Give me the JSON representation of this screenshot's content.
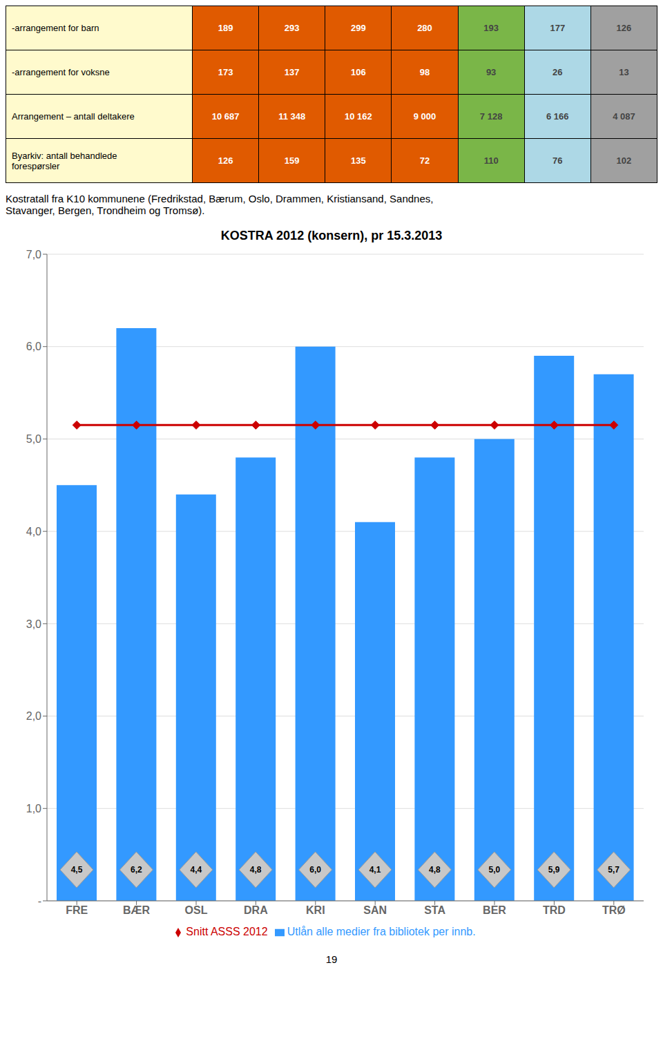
{
  "table": {
    "row_labels": [
      "-arrangement for barn",
      "-arrangement for voksne",
      "Arrangement – antall deltakere",
      "Byarkiv: antall behandlede\nforespørsler"
    ],
    "row_label_color": "#FFFACD",
    "columns": [
      {
        "color": "#E05A00",
        "values": [
          189,
          173,
          10687,
          126
        ],
        "value_labels": [
          "189",
          "173",
          "10 687",
          "126"
        ]
      },
      {
        "color": "#E05A00",
        "values": [
          293,
          137,
          11348,
          159
        ],
        "value_labels": [
          "293",
          "137",
          "11 348",
          "159"
        ]
      },
      {
        "color": "#E05A00",
        "values": [
          299,
          106,
          10162,
          135
        ],
        "value_labels": [
          "299",
          "106",
          "10 162",
          "135"
        ]
      },
      {
        "color": "#E05A00",
        "values": [
          280,
          98,
          9000,
          72
        ],
        "value_labels": [
          "280",
          "98",
          "9 000",
          "72"
        ]
      },
      {
        "color": "#7AB648",
        "values": [
          193,
          93,
          7128,
          110
        ],
        "value_labels": [
          "193",
          "93",
          "7 128",
          "110"
        ]
      },
      {
        "color": "#ADD8E6",
        "values": [
          177,
          26,
          6166,
          76
        ],
        "value_labels": [
          "177",
          "26",
          "6 166",
          "76"
        ]
      },
      {
        "color": "#A0A0A0",
        "values": [
          126,
          13,
          4087,
          102
        ],
        "value_labels": [
          "126",
          "13",
          "4 087",
          "102"
        ]
      }
    ]
  },
  "intro_text": "Kostratall fra K10 kommunene (Fredrikstad, Bærum, Oslo, Drammen, Kristiansand, Sandnes,\nStavanger, Bergen, Trondheim og Tromsø).",
  "page_number": "19",
  "chart_data": {
    "type": "bar",
    "title": "KOSTRA 2012 (konsern), pr 15.3.2013",
    "categories": [
      "FRE",
      "BÆR",
      "OSL",
      "DRA",
      "KRI",
      "SAN",
      "STA",
      "BER",
      "TRD",
      "TRØ"
    ],
    "series": [
      {
        "name": "Utlån alle medier fra bibliotek per innb.",
        "type": "bar",
        "color": "#3399FF",
        "values": [
          4.5,
          6.2,
          4.4,
          4.8,
          6.0,
          4.1,
          4.8,
          5.0,
          5.9,
          5.7
        ],
        "value_labels": [
          "4,5",
          "6,2",
          "4,4",
          "4,8",
          "6,0",
          "4,1",
          "4,8",
          "5,0",
          "5,9",
          "5,7"
        ]
      },
      {
        "name": "Snitt ASSS 2012",
        "type": "line",
        "color": "#CC0000",
        "marker": "diamond",
        "values": [
          5.15,
          5.15,
          5.15,
          5.15,
          5.15,
          5.15,
          5.15,
          5.15,
          5.15,
          5.15
        ]
      }
    ],
    "ylim": [
      0,
      7.0
    ],
    "yticks": [
      {
        "value": 0,
        "label": "-"
      },
      {
        "value": 1.0,
        "label": "1,0"
      },
      {
        "value": 2.0,
        "label": "2,0"
      },
      {
        "value": 3.0,
        "label": "3,0"
      },
      {
        "value": 4.0,
        "label": "4,0"
      },
      {
        "value": 5.0,
        "label": "5,0"
      },
      {
        "value": 6.0,
        "label": "6,0"
      },
      {
        "value": 7.0,
        "label": "7,0"
      }
    ],
    "grid": true,
    "legend": "bottom",
    "data_labels": true
  }
}
